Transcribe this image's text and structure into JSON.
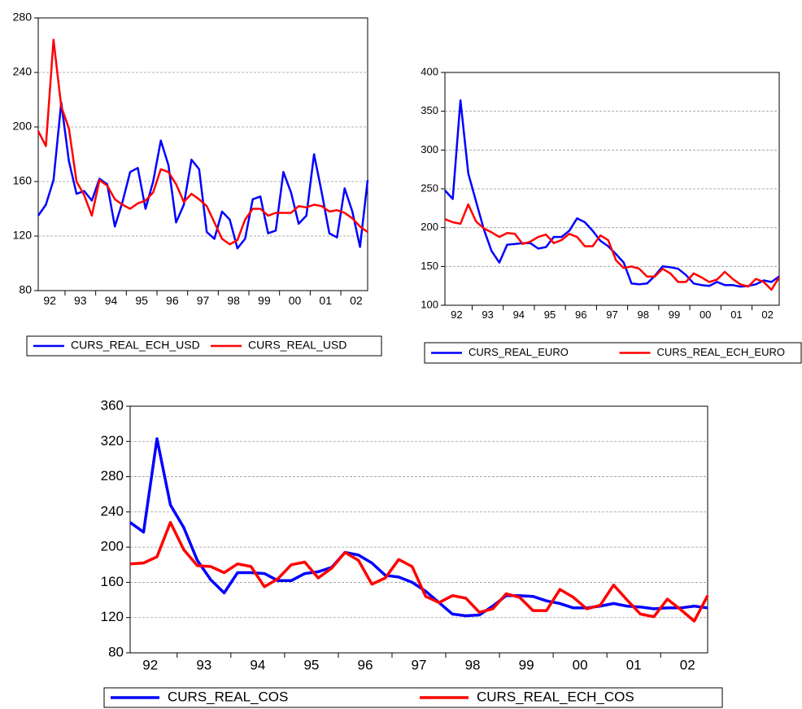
{
  "chart_data": [
    {
      "type": "line",
      "categories": [
        null,
        "92",
        null,
        null,
        null,
        "93",
        null,
        null,
        null,
        "94",
        null,
        null,
        null,
        "95",
        null,
        null,
        null,
        "96",
        null,
        null,
        null,
        "97",
        null,
        null,
        null,
        "98",
        null,
        null,
        null,
        "99",
        null,
        null,
        null,
        "00",
        null,
        null,
        null,
        "01",
        null,
        null,
        null,
        "02",
        null,
        null
      ],
      "series": [
        {
          "name": "CURS_REAL_ECH_USD",
          "color": "#0000ff",
          "values": [
            135,
            143,
            161,
            218,
            175,
            151,
            153,
            146,
            162,
            158,
            127,
            145,
            167,
            170,
            140,
            160,
            190,
            172,
            130,
            143,
            176,
            169,
            123,
            118,
            138,
            132,
            111,
            118,
            147,
            149,
            122,
            124,
            167,
            152,
            129,
            135,
            180,
            152,
            122,
            119,
            155,
            138,
            112,
            161
          ]
        },
        {
          "name": "CURS_REAL_USD",
          "color": "#ff0000",
          "values": [
            197,
            186,
            264,
            215,
            199,
            160,
            150,
            135,
            161,
            157,
            147,
            143,
            140,
            144,
            146,
            152,
            169,
            167,
            158,
            145,
            151,
            147,
            142,
            130,
            118,
            114,
            117,
            132,
            140,
            140,
            135,
            137,
            137,
            137,
            142,
            141,
            143,
            142,
            138,
            139,
            137,
            133,
            127,
            123
          ]
        }
      ],
      "ylim": [
        80,
        280
      ],
      "yticks": [
        80,
        120,
        160,
        200,
        240,
        280
      ],
      "grid": true
    },
    {
      "type": "line",
      "categories": [
        null,
        "92",
        null,
        null,
        null,
        "93",
        null,
        null,
        null,
        "94",
        null,
        null,
        null,
        "95",
        null,
        null,
        null,
        "96",
        null,
        null,
        null,
        "97",
        null,
        null,
        null,
        "98",
        null,
        null,
        null,
        "99",
        null,
        null,
        null,
        "00",
        null,
        null,
        null,
        "01",
        null,
        null,
        null,
        "02",
        null,
        null
      ],
      "series": [
        {
          "name": "CURS_REAL_EURO",
          "color": "#0000ff",
          "values": [
            248,
            237,
            364,
            270,
            234,
            198,
            170,
            155,
            178,
            179,
            180,
            180,
            173,
            175,
            188,
            188,
            196,
            212,
            207,
            196,
            183,
            176,
            166,
            155,
            128,
            127,
            128,
            138,
            150,
            149,
            147,
            139,
            128,
            126,
            125,
            130,
            126,
            126,
            124,
            125,
            127,
            132,
            130,
            137
          ]
        },
        {
          "name": "CURS_REAL_ECH_EURO",
          "color": "#ff0000",
          "values": [
            211,
            207,
            205,
            230,
            208,
            199,
            194,
            188,
            193,
            192,
            179,
            182,
            188,
            191,
            180,
            184,
            192,
            188,
            176,
            176,
            190,
            184,
            158,
            148,
            150,
            147,
            137,
            137,
            147,
            141,
            130,
            130,
            141,
            136,
            130,
            133,
            143,
            134,
            127,
            124,
            134,
            130,
            120,
            136
          ]
        }
      ],
      "ylim": [
        100,
        400
      ],
      "yticks": [
        100,
        150,
        200,
        250,
        300,
        350,
        400
      ],
      "grid": true
    },
    {
      "type": "line",
      "categories": [
        null,
        "92",
        null,
        null,
        null,
        "93",
        null,
        null,
        null,
        "94",
        null,
        null,
        null,
        "95",
        null,
        null,
        null,
        "96",
        null,
        null,
        null,
        "97",
        null,
        null,
        null,
        "98",
        null,
        null,
        null,
        "99",
        null,
        null,
        null,
        "00",
        null,
        null,
        null,
        "01",
        null,
        null,
        null,
        "02",
        null,
        null
      ],
      "series": [
        {
          "name": "CURS_REAL_COS",
          "color": "#0000ff",
          "values": [
            228,
            217,
            323,
            248,
            222,
            185,
            163,
            148,
            171,
            171,
            170,
            162,
            162,
            170,
            172,
            177,
            194,
            191,
            182,
            168,
            166,
            160,
            150,
            137,
            124,
            122,
            123,
            133,
            145,
            145,
            144,
            139,
            136,
            131,
            131,
            133,
            136,
            133,
            132,
            130,
            131,
            131,
            133,
            131
          ]
        },
        {
          "name": "CURS_REAL_ECH_COS",
          "color": "#ff0000",
          "values": [
            181,
            182,
            189,
            228,
            197,
            179,
            178,
            171,
            181,
            178,
            155,
            164,
            180,
            183,
            165,
            176,
            194,
            185,
            158,
            165,
            186,
            178,
            144,
            137,
            145,
            142,
            126,
            130,
            147,
            143,
            128,
            128,
            152,
            143,
            130,
            134,
            157,
            140,
            124,
            121,
            141,
            129,
            116,
            145
          ]
        }
      ],
      "ylim": [
        80,
        360
      ],
      "yticks": [
        80,
        120,
        160,
        200,
        240,
        280,
        320,
        360
      ],
      "grid": true
    }
  ]
}
